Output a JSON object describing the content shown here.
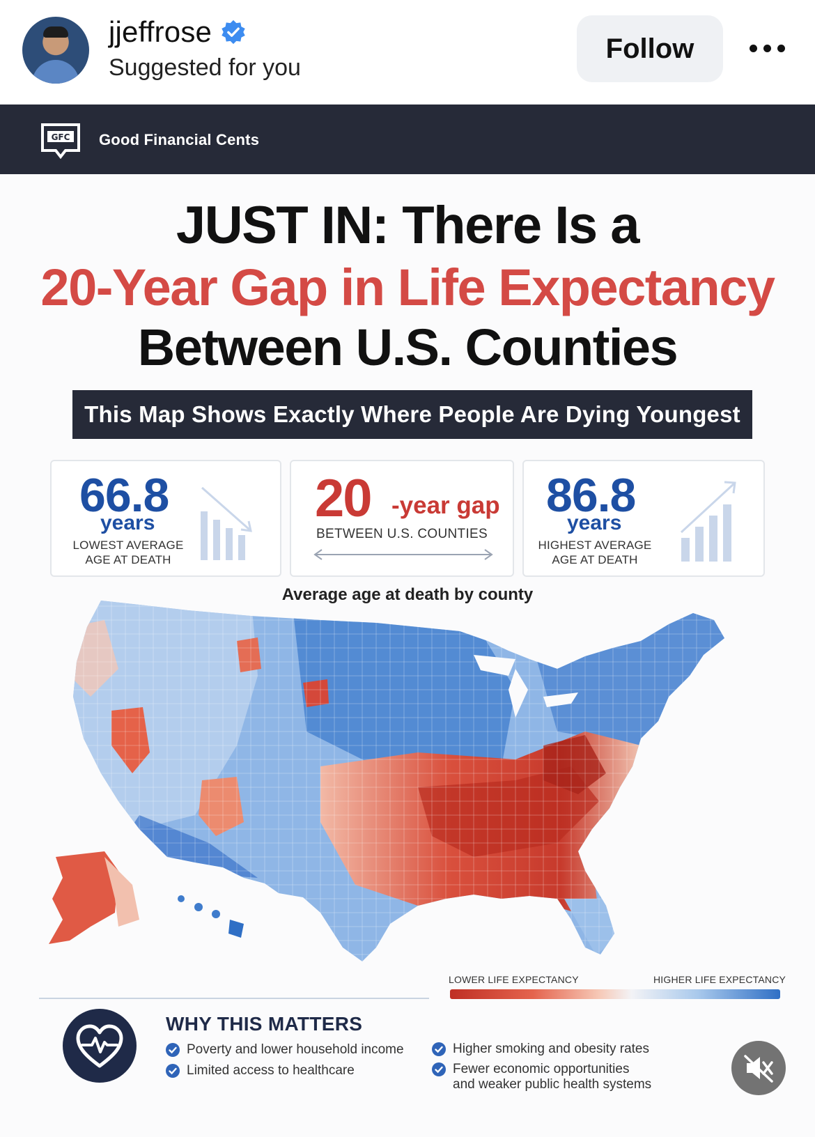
{
  "post": {
    "username": "jjeffrose",
    "subtitle": "Suggested for you",
    "follow_label": "Follow"
  },
  "brand": {
    "name": "Good Financial Cents",
    "logo_text": "GFC"
  },
  "headline": {
    "line1": "JUST IN:  There Is a",
    "line2": "20-Year Gap in Life Expectancy",
    "line3": "Between U.S. Counties"
  },
  "banner": "This Map Shows Exactly Where People Are Dying Youngest",
  "stats": {
    "lowest": {
      "value": "66.8",
      "unit": "years",
      "label1": "LOWEST AVERAGE",
      "label2": "AGE AT DEATH"
    },
    "gap": {
      "value": "20",
      "unit": "-year gap",
      "label": "BETWEEN U.S. COUNTIES"
    },
    "highest": {
      "value": "86.8",
      "unit": "years",
      "label1": "HIGHEST AVERAGE",
      "label2": "AGE AT DEATH"
    }
  },
  "map": {
    "title": "Average age at death by county",
    "legend_low": "LOWER LIFE EXPECTANCY",
    "legend_high": "HIGHER LIFE EXPECTANCY",
    "colors": {
      "low": "#bf2f24",
      "mid": "#f3f3f6",
      "high": "#2f6fc5"
    }
  },
  "why": {
    "title": "WHY THIS MATTERS",
    "reasons": [
      "Poverty and lower household income",
      "Limited access to healthcare",
      "Higher smoking and obesity rates",
      "Fewer economic opportunities and weaker public health systems"
    ]
  },
  "colors": {
    "accent_red": "#d44a45",
    "navy": "#262a38",
    "blue": "#1e4fa3"
  }
}
